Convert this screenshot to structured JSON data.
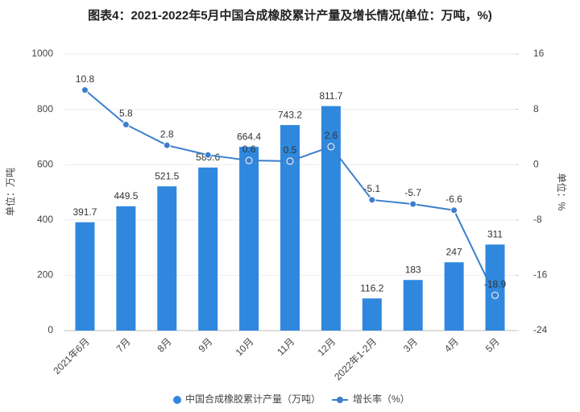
{
  "chart_data": {
    "type": "bar-line",
    "title": "图表4：2021-2022年5月中国合成橡胶累计产量及增长情况(单位：万吨，%)",
    "y_label": "单位：万吨",
    "y2_label": "单位：%",
    "categories": [
      "2021年6月",
      "7月",
      "8月",
      "9月",
      "10月",
      "11月",
      "12月",
      "2022年1-2月",
      "3月",
      "4月",
      "5月"
    ],
    "series": [
      {
        "name": "中国合成橡胶累计产量（万吨）",
        "type": "bar",
        "color": "#2f88de",
        "values": [
          391.7,
          449.5,
          521.5,
          589.6,
          664.4,
          743.2,
          811.7,
          116.2,
          183,
          247,
          311
        ]
      },
      {
        "name": "增长率（%）",
        "type": "line",
        "axis": "y2",
        "color": "#3b7fcc",
        "values": [
          10.8,
          5.8,
          2.8,
          1.4,
          0.6,
          0.5,
          2.6,
          -5.1,
          -5.7,
          -6.6,
          -18.9
        ],
        "value_labels": [
          "10.8",
          "5.8",
          "2.8",
          null,
          "0.6",
          "0.5",
          "2.6",
          "-5.1",
          "-5.7",
          "-6.6",
          "-18.9"
        ]
      }
    ],
    "ylim": [
      0,
      1000
    ],
    "yticks": [
      0,
      200,
      400,
      600,
      800,
      1000
    ],
    "y2lim": [
      -24,
      16
    ],
    "y2ticks": [
      -24,
      -16,
      -8,
      0,
      8,
      16
    ],
    "grid": true,
    "legend": "bottom"
  }
}
